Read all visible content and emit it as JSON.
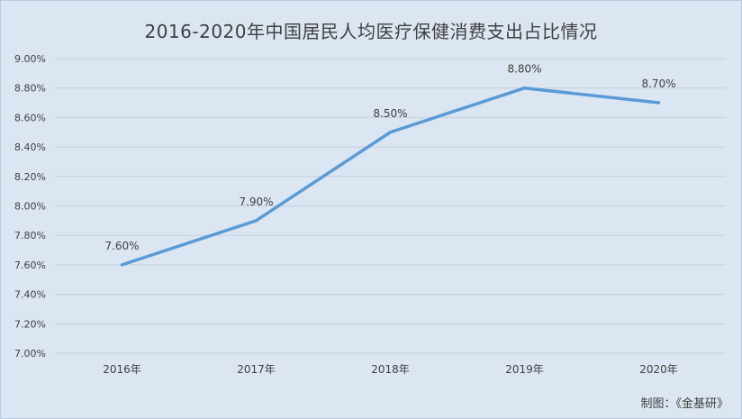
{
  "chart_data": {
    "type": "line",
    "title": "2016-2020年中国居民人均医疗保健消费支出占比情况",
    "xlabel": "",
    "ylabel": "",
    "categories": [
      "2016年",
      "2017年",
      "2018年",
      "2019年",
      "2020年"
    ],
    "series": [
      {
        "values": [
          7.6,
          7.9,
          8.5,
          8.8,
          8.7
        ],
        "labels": [
          "7.60%",
          "7.90%",
          "8.50%",
          "8.80%",
          "8.70%"
        ],
        "color": "#5b9bd5"
      }
    ],
    "ylim": [
      7.0,
      9.0
    ],
    "yticks": [
      "7.00%",
      "7.20%",
      "7.40%",
      "7.60%",
      "7.80%",
      "8.00%",
      "8.20%",
      "8.40%",
      "8.60%",
      "8.80%",
      "9.00%"
    ],
    "grid": true,
    "legend": "none"
  },
  "source_note": "制图：《金基研》",
  "colors": {
    "background": "#dce6f2",
    "line": "#5b9bd5"
  }
}
